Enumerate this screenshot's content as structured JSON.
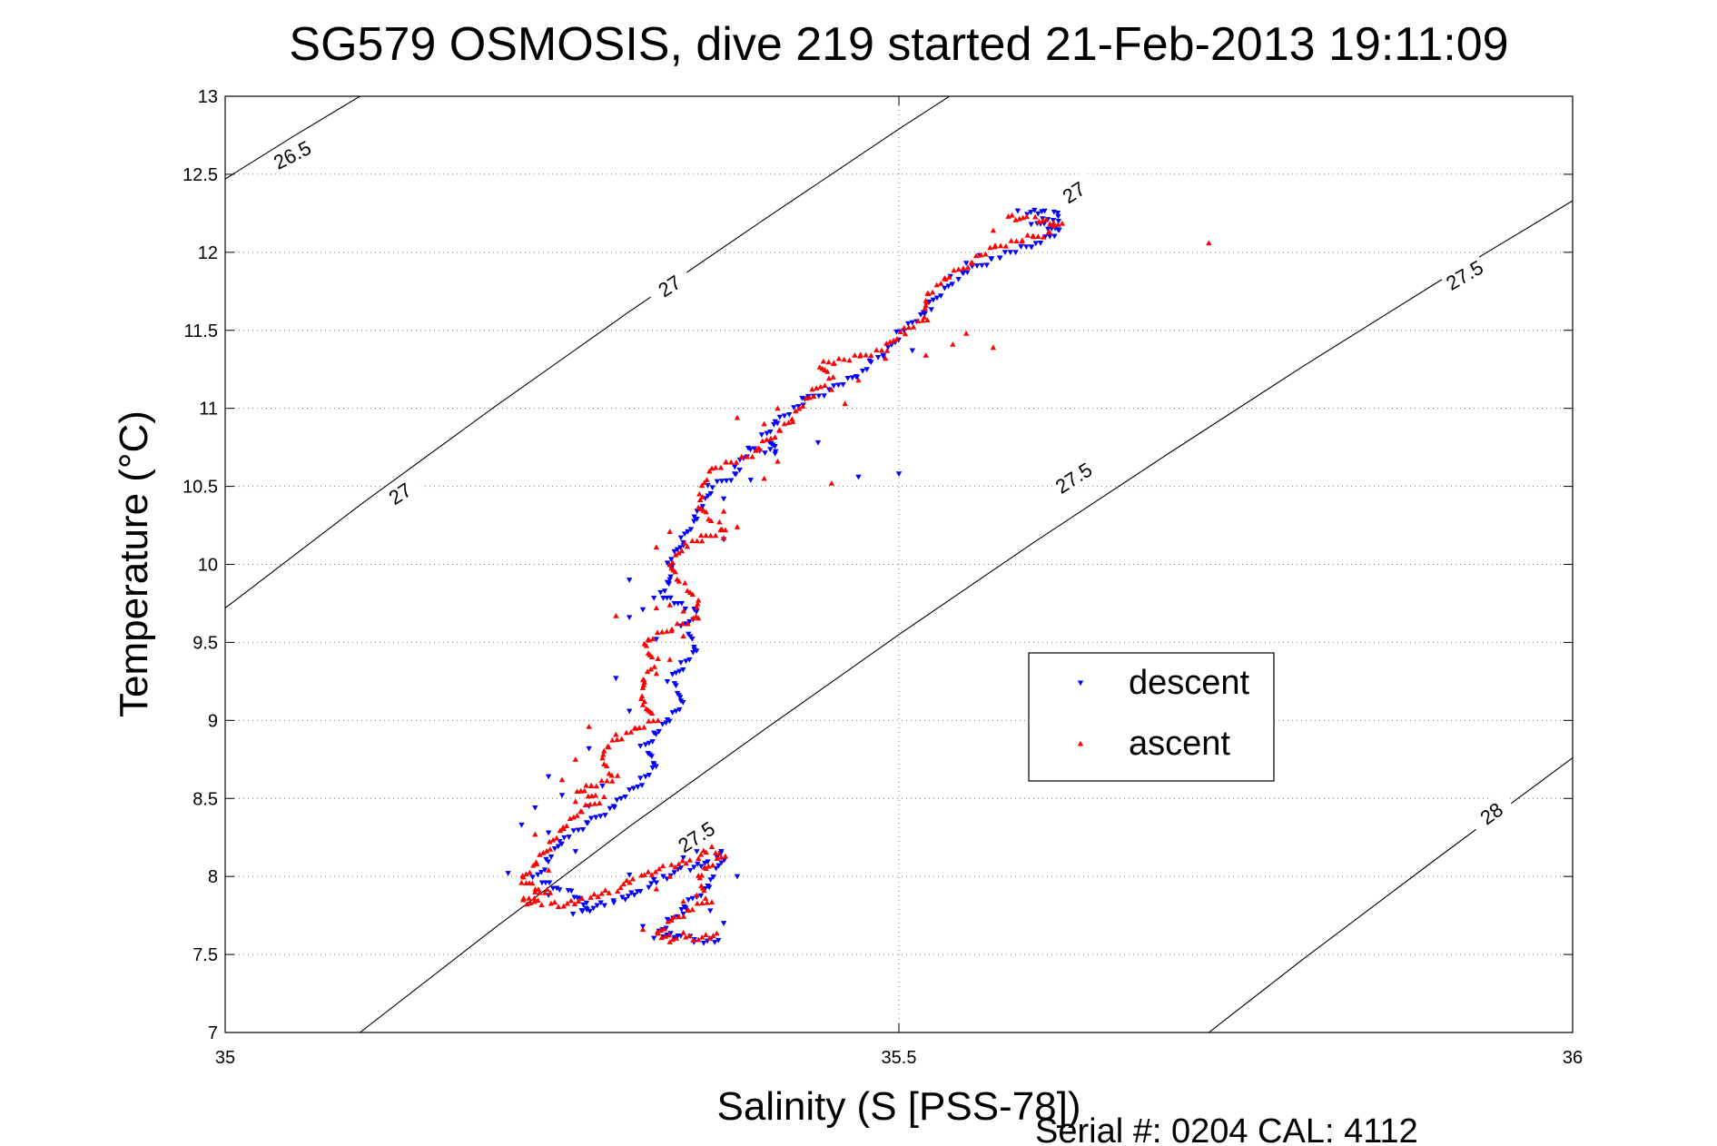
{
  "chart_data": {
    "type": "scatter",
    "title": "SG579 OSMOSIS, dive 219 started 21-Feb-2013 19:11:09",
    "xlabel": "Salinity (S [PSS-78])",
    "ylabel": "Temperature (°C)",
    "footer": "Serial #: 0204  CAL: 4112",
    "xlim": [
      35,
      36
    ],
    "ylim": [
      7,
      13
    ],
    "xticks": [
      "35",
      "35.5",
      "36"
    ],
    "yticks": [
      "7",
      "7.5",
      "8",
      "8.5",
      "9",
      "9.5",
      "10",
      "10.5",
      "11",
      "11.5",
      "12",
      "12.5",
      "13"
    ],
    "grid": true,
    "legend_position": "right-center",
    "contours": [
      {
        "label": "26.5",
        "points": [
          [
            35.0,
            12.47
          ],
          [
            35.05,
            12.74
          ],
          [
            35.1,
            13.0
          ]
        ]
      },
      {
        "label": "27",
        "points": [
          [
            35.0,
            9.72
          ],
          [
            35.1,
            10.38
          ],
          [
            35.2,
            11.01
          ],
          [
            35.3,
            11.62
          ],
          [
            35.4,
            12.21
          ],
          [
            35.5,
            12.79
          ],
          [
            35.55,
            13.07
          ]
        ]
      },
      {
        "label": "27.5",
        "points": [
          [
            35.1,
            7.0
          ],
          [
            35.2,
            7.67
          ],
          [
            35.3,
            8.32
          ],
          [
            35.4,
            8.94
          ],
          [
            35.5,
            9.55
          ],
          [
            35.6,
            10.14
          ],
          [
            35.7,
            10.71
          ],
          [
            35.8,
            11.27
          ],
          [
            35.9,
            11.81
          ],
          [
            36.0,
            12.33
          ]
        ]
      },
      {
        "label": "28",
        "points": [
          [
            35.73,
            7.0
          ],
          [
            35.8,
            7.47
          ],
          [
            35.9,
            8.12
          ],
          [
            36.0,
            8.76
          ]
        ]
      }
    ],
    "contour_labels": [
      {
        "text": "26.5",
        "x": 35.05,
        "y": 12.62,
        "angle": -27
      },
      {
        "text": "27",
        "x": 35.13,
        "y": 10.45,
        "angle": -33
      },
      {
        "text": "27",
        "x": 35.33,
        "y": 11.78,
        "angle": -33
      },
      {
        "text": "27",
        "x": 35.63,
        "y": 12.38,
        "angle": -33
      },
      {
        "text": "27.5",
        "x": 35.35,
        "y": 8.25,
        "angle": -33
      },
      {
        "text": "27.5",
        "x": 35.63,
        "y": 10.55,
        "angle": -33
      },
      {
        "text": "27.5",
        "x": 35.92,
        "y": 11.85,
        "angle": -30
      },
      {
        "text": "28",
        "x": 35.94,
        "y": 8.4,
        "angle": -36
      }
    ],
    "series": [
      {
        "name": "descent",
        "color": "#0000ff",
        "marker": "triangle-down",
        "path": [
          [
            35.59,
            12.25
          ],
          [
            35.61,
            12.27
          ],
          [
            35.62,
            12.22
          ],
          [
            35.6,
            12.19
          ],
          [
            35.62,
            12.14
          ],
          [
            35.6,
            12.05
          ],
          [
            35.57,
            11.96
          ],
          [
            35.54,
            11.83
          ],
          [
            35.52,
            11.62
          ],
          [
            35.5,
            11.48
          ],
          [
            35.49,
            11.35
          ],
          [
            35.48,
            11.3
          ],
          [
            35.47,
            11.22
          ],
          [
            35.45,
            11.12
          ],
          [
            35.43,
            11.05
          ],
          [
            35.41,
            10.92
          ],
          [
            35.4,
            10.82
          ],
          [
            35.41,
            10.72
          ],
          [
            35.39,
            10.74
          ],
          [
            35.38,
            10.64
          ],
          [
            35.38,
            10.58
          ],
          [
            35.36,
            10.49
          ],
          [
            35.35,
            10.31
          ],
          [
            35.34,
            10.16
          ],
          [
            35.33,
            10.02
          ],
          [
            35.33,
            9.88
          ],
          [
            35.32,
            9.8
          ],
          [
            35.35,
            9.71
          ],
          [
            35.34,
            9.59
          ],
          [
            35.35,
            9.46
          ],
          [
            35.34,
            9.36
          ],
          [
            35.33,
            9.26
          ],
          [
            35.34,
            9.12
          ],
          [
            35.33,
            9.02
          ],
          [
            35.32,
            8.92
          ],
          [
            35.31,
            8.82
          ],
          [
            35.32,
            8.72
          ],
          [
            35.31,
            8.62
          ],
          [
            35.29,
            8.46
          ],
          [
            35.27,
            8.34
          ],
          [
            35.25,
            8.24
          ],
          [
            35.24,
            8.11
          ],
          [
            35.23,
            7.98
          ],
          [
            35.25,
            7.92
          ],
          [
            35.27,
            7.82
          ],
          [
            35.26,
            7.77
          ],
          [
            35.29,
            7.84
          ],
          [
            35.31,
            7.92
          ],
          [
            35.32,
            7.98
          ],
          [
            35.34,
            8.04
          ],
          [
            35.36,
            8.1
          ],
          [
            35.37,
            8.15
          ],
          [
            35.36,
            7.95
          ],
          [
            35.33,
            7.72
          ],
          [
            35.32,
            7.62
          ],
          [
            35.34,
            7.62
          ],
          [
            35.35,
            7.58
          ],
          [
            35.37,
            7.6
          ]
        ],
        "extra": [
          [
            35.56,
            11.98
          ],
          [
            35.55,
            11.93
          ],
          [
            35.51,
            11.37
          ],
          [
            35.43,
            11.06
          ],
          [
            35.44,
            10.78
          ],
          [
            35.5,
            10.58
          ],
          [
            35.47,
            10.56
          ],
          [
            35.37,
            10.42
          ],
          [
            35.39,
            10.54
          ],
          [
            35.37,
            10.16
          ],
          [
            35.34,
            10.14
          ],
          [
            35.3,
            9.9
          ],
          [
            35.31,
            9.71
          ],
          [
            35.3,
            9.66
          ],
          [
            35.32,
            9.52
          ],
          [
            35.29,
            9.27
          ],
          [
            35.3,
            9.06
          ],
          [
            35.27,
            8.82
          ],
          [
            35.24,
            8.64
          ],
          [
            35.28,
            8.58
          ],
          [
            35.27,
            8.45
          ],
          [
            35.25,
            8.52
          ],
          [
            35.23,
            8.44
          ],
          [
            35.22,
            8.33
          ],
          [
            35.24,
            8.28
          ],
          [
            35.26,
            8.16
          ],
          [
            35.21,
            8.02
          ],
          [
            35.24,
            7.88
          ],
          [
            35.3,
            8.01
          ],
          [
            35.34,
            8.12
          ],
          [
            35.35,
            8.16
          ],
          [
            35.36,
            7.78
          ],
          [
            35.31,
            7.68
          ],
          [
            35.37,
            7.7
          ],
          [
            35.34,
            7.76
          ],
          [
            35.32,
            7.96
          ],
          [
            35.38,
            8.0
          ]
        ]
      },
      {
        "name": "ascent",
        "color": "#ff0000",
        "marker": "triangle-up",
        "path": [
          [
            35.58,
            12.23
          ],
          [
            35.6,
            12.21
          ],
          [
            35.62,
            12.19
          ],
          [
            35.61,
            12.12
          ],
          [
            35.59,
            12.08
          ],
          [
            35.57,
            12.03
          ],
          [
            35.55,
            11.92
          ],
          [
            35.53,
            11.8
          ],
          [
            35.52,
            11.72
          ],
          [
            35.52,
            11.57
          ],
          [
            35.5,
            11.48
          ],
          [
            35.49,
            11.38
          ],
          [
            35.47,
            11.33
          ],
          [
            35.44,
            11.28
          ],
          [
            35.45,
            11.2
          ],
          [
            35.43,
            11.05
          ],
          [
            35.42,
            10.92
          ],
          [
            35.41,
            10.85
          ],
          [
            35.39,
            10.7
          ],
          [
            35.36,
            10.61
          ],
          [
            35.35,
            10.38
          ],
          [
            35.37,
            10.22
          ],
          [
            35.34,
            10.12
          ],
          [
            35.33,
            9.98
          ],
          [
            35.34,
            9.87
          ],
          [
            35.35,
            9.78
          ],
          [
            35.35,
            9.65
          ],
          [
            35.33,
            9.59
          ],
          [
            35.31,
            9.49
          ],
          [
            35.32,
            9.38
          ],
          [
            35.31,
            9.25
          ],
          [
            35.31,
            9.11
          ],
          [
            35.32,
            9.01
          ],
          [
            35.3,
            8.92
          ],
          [
            35.28,
            8.82
          ],
          [
            35.28,
            8.72
          ],
          [
            35.29,
            8.63
          ],
          [
            35.26,
            8.55
          ],
          [
            35.28,
            8.5
          ],
          [
            35.26,
            8.4
          ],
          [
            35.25,
            8.3
          ],
          [
            35.24,
            8.19
          ],
          [
            35.23,
            8.08
          ],
          [
            35.22,
            7.98
          ],
          [
            35.24,
            7.9
          ],
          [
            35.22,
            7.84
          ],
          [
            35.25,
            7.82
          ],
          [
            35.27,
            7.86
          ],
          [
            35.29,
            7.92
          ],
          [
            35.31,
            8.01
          ],
          [
            35.33,
            8.06
          ],
          [
            35.35,
            8.12
          ],
          [
            35.36,
            8.18
          ],
          [
            35.37,
            8.14
          ],
          [
            35.35,
            8.0
          ],
          [
            35.36,
            7.85
          ],
          [
            35.33,
            7.72
          ],
          [
            35.32,
            7.62
          ],
          [
            35.35,
            7.6
          ],
          [
            35.37,
            7.63
          ]
        ],
        "extra": [
          [
            35.57,
            12.14
          ],
          [
            35.6,
            12.1
          ],
          [
            35.52,
            11.69
          ],
          [
            35.55,
            11.48
          ],
          [
            35.57,
            11.39
          ],
          [
            35.54,
            11.41
          ],
          [
            35.52,
            11.34
          ],
          [
            35.49,
            11.32
          ],
          [
            35.47,
            11.18
          ],
          [
            35.45,
            11.12
          ],
          [
            35.41,
            11.0
          ],
          [
            35.46,
            11.03
          ],
          [
            35.4,
            10.9
          ],
          [
            35.38,
            10.94
          ],
          [
            35.41,
            10.66
          ],
          [
            35.45,
            10.52
          ],
          [
            35.4,
            10.55
          ],
          [
            35.37,
            10.34
          ],
          [
            35.37,
            10.17
          ],
          [
            35.33,
            10.21
          ],
          [
            35.32,
            10.11
          ],
          [
            35.33,
            9.74
          ],
          [
            35.32,
            9.72
          ],
          [
            35.34,
            9.7
          ],
          [
            35.34,
            9.54
          ],
          [
            35.33,
            9.39
          ],
          [
            35.31,
            9.26
          ],
          [
            35.32,
            9.3
          ],
          [
            35.31,
            9.1
          ],
          [
            35.29,
            8.91
          ],
          [
            35.26,
            8.75
          ],
          [
            35.25,
            8.62
          ],
          [
            35.26,
            8.48
          ],
          [
            35.23,
            8.27
          ],
          [
            35.24,
            8.04
          ],
          [
            35.22,
            7.96
          ],
          [
            35.23,
            7.9
          ],
          [
            35.33,
            8.0
          ],
          [
            35.35,
            7.88
          ],
          [
            35.34,
            7.84
          ],
          [
            35.32,
            7.92
          ],
          [
            35.33,
            7.58
          ],
          [
            35.31,
            7.66
          ],
          [
            35.34,
            7.64
          ],
          [
            35.73,
            12.06
          ],
          [
            35.38,
            10.24
          ],
          [
            35.29,
            9.67
          ],
          [
            35.27,
            8.96
          ]
        ]
      }
    ]
  }
}
